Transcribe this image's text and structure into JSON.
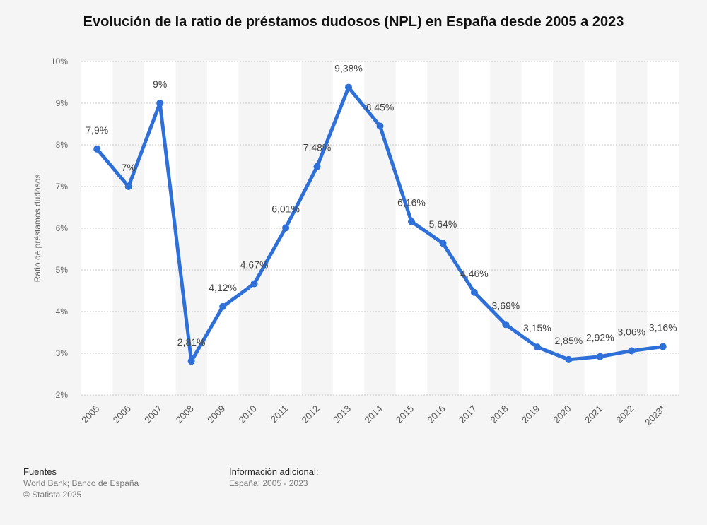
{
  "chart_data": {
    "type": "line",
    "title": "Evolución de la ratio de préstamos dudosos (NPL) en España desde 2005 a 2023",
    "ylabel": "Ratio de préstamos dudosos",
    "xlabel": "",
    "ylim": [
      2,
      10
    ],
    "yticks": [
      "2%",
      "3%",
      "4%",
      "5%",
      "6%",
      "7%",
      "8%",
      "9%",
      "10%"
    ],
    "grid": true,
    "line_color": "#2e6fd8",
    "categories": [
      "2005",
      "2006",
      "2007",
      "2008",
      "2009",
      "2010",
      "2011",
      "2012",
      "2013",
      "2014",
      "2015",
      "2016",
      "2017",
      "2018",
      "2019",
      "2020",
      "2021",
      "2022",
      "2023*"
    ],
    "values": [
      7.9,
      7.0,
      9.0,
      2.81,
      4.12,
      4.67,
      6.01,
      7.48,
      9.38,
      8.45,
      6.16,
      5.64,
      4.46,
      3.69,
      3.15,
      2.85,
      2.92,
      3.06,
      3.16
    ],
    "data_labels": [
      "7,9%",
      "7%",
      "9%",
      "2,81%",
      "4,12%",
      "4,67%",
      "6,01%",
      "7,48%",
      "9,38%",
      "8,45%",
      "6,16%",
      "5,64%",
      "4,46%",
      "3,69%",
      "3,15%",
      "2,85%",
      "2,92%",
      "3,06%",
      "3,16%"
    ]
  },
  "footer": {
    "sources_title": "Fuentes",
    "sources_line1": "World Bank; Banco de España",
    "sources_line2": "© Statista 2025",
    "info_title": "Información adicional:",
    "info_line1": "España; 2005 - 2023"
  }
}
